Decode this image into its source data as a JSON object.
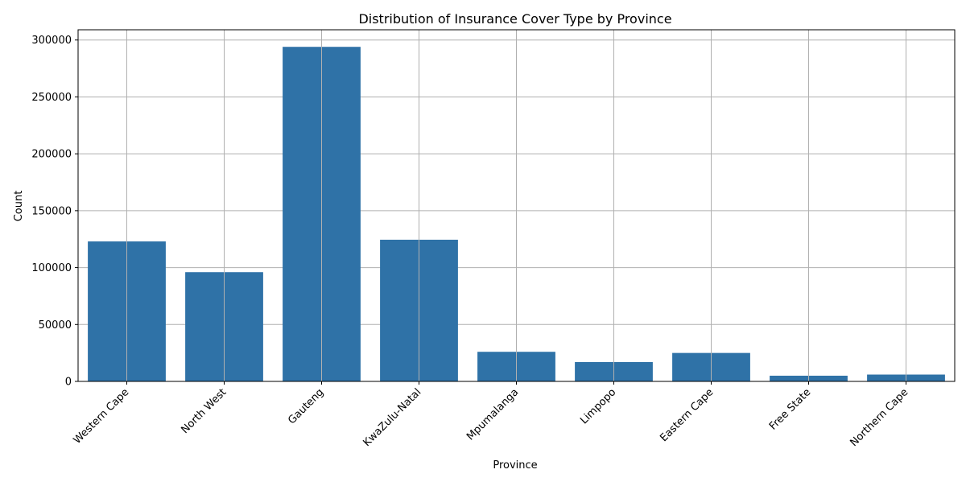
{
  "chart_data": {
    "type": "bar",
    "title": "Distribution of Insurance Cover Type by Province",
    "xlabel": "Province",
    "ylabel": "Count",
    "categories": [
      "Western Cape",
      "North West",
      "Gauteng",
      "KwaZulu-Natal",
      "Mpumalanga",
      "Limpopo",
      "Eastern Cape",
      "Free State",
      "Northern Cape"
    ],
    "values": [
      123000,
      96000,
      294000,
      124500,
      26000,
      17000,
      25000,
      5000,
      6000
    ],
    "ylim": [
      0,
      309000
    ],
    "yticks": [
      0,
      50000,
      100000,
      150000,
      200000,
      250000,
      300000
    ],
    "grid": true,
    "bar_color": "#2f72a7",
    "grid_color": "#b0b0b0"
  }
}
